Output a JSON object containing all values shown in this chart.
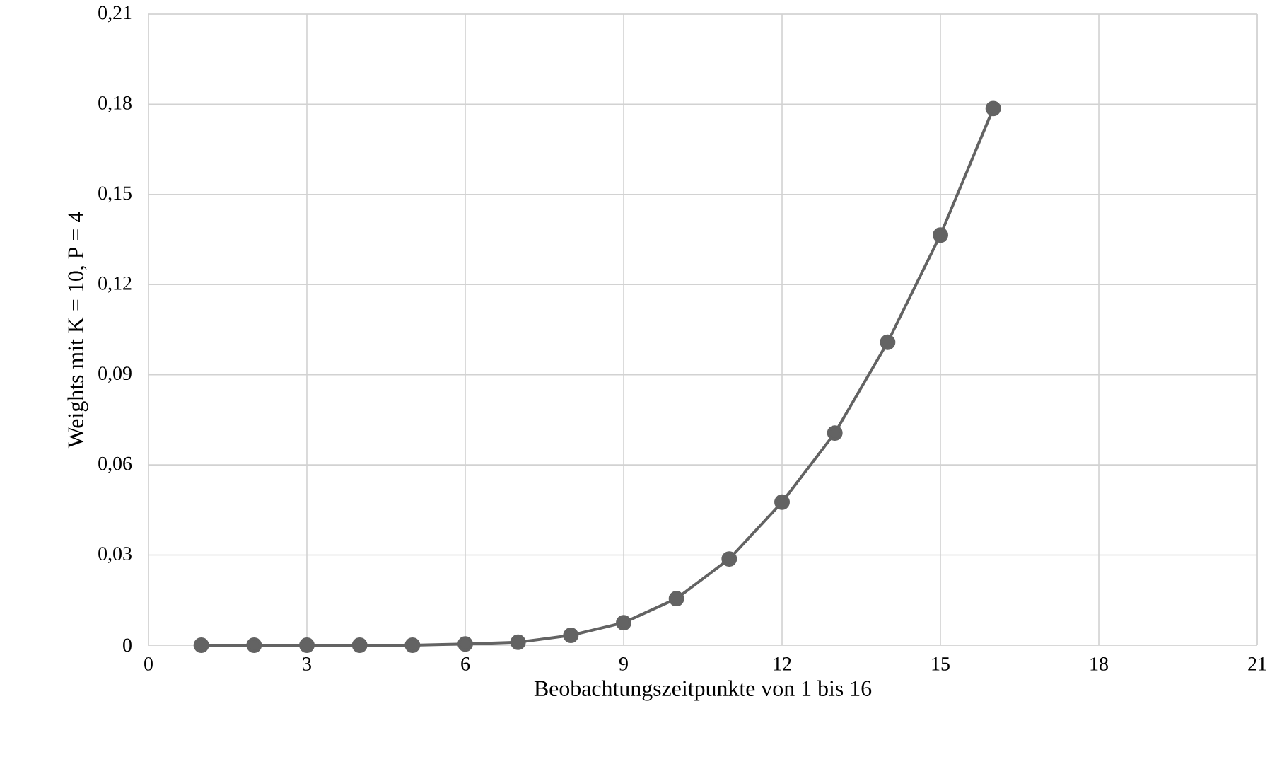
{
  "chart_data": {
    "type": "line",
    "xlabel": "Beobachtungszeitpunkte von 1 bis 16",
    "ylabel": "Weights mit K = 10, P = 4",
    "x": [
      1,
      2,
      3,
      4,
      5,
      6,
      7,
      8,
      9,
      10,
      11,
      12,
      13,
      14,
      15,
      16
    ],
    "series": [
      {
        "color": "#636363",
        "values": [
          0,
          0,
          0,
          0,
          0,
          0.0004,
          0.001,
          0.0033,
          0.0075,
          0.0155,
          0.0287,
          0.0476,
          0.0706,
          0.1008,
          0.1365,
          0.1786
        ]
      }
    ],
    "xlim": [
      0,
      21
    ],
    "xticks": [
      0,
      3,
      6,
      9,
      12,
      15,
      18,
      21
    ],
    "ylim": [
      0,
      0.21
    ],
    "yticks": [
      {
        "value": 0,
        "label": "0"
      },
      {
        "value": 0.03,
        "label": "0,03"
      },
      {
        "value": 0.06,
        "label": "0,06"
      },
      {
        "value": 0.09,
        "label": "0,09"
      },
      {
        "value": 0.12,
        "label": "0,12"
      },
      {
        "value": 0.15,
        "label": "0,15"
      },
      {
        "value": 0.18,
        "label": "0,18"
      },
      {
        "value": 0.21,
        "label": "0,21"
      }
    ],
    "grid": true,
    "marker": "circle",
    "line_style": "solid"
  }
}
